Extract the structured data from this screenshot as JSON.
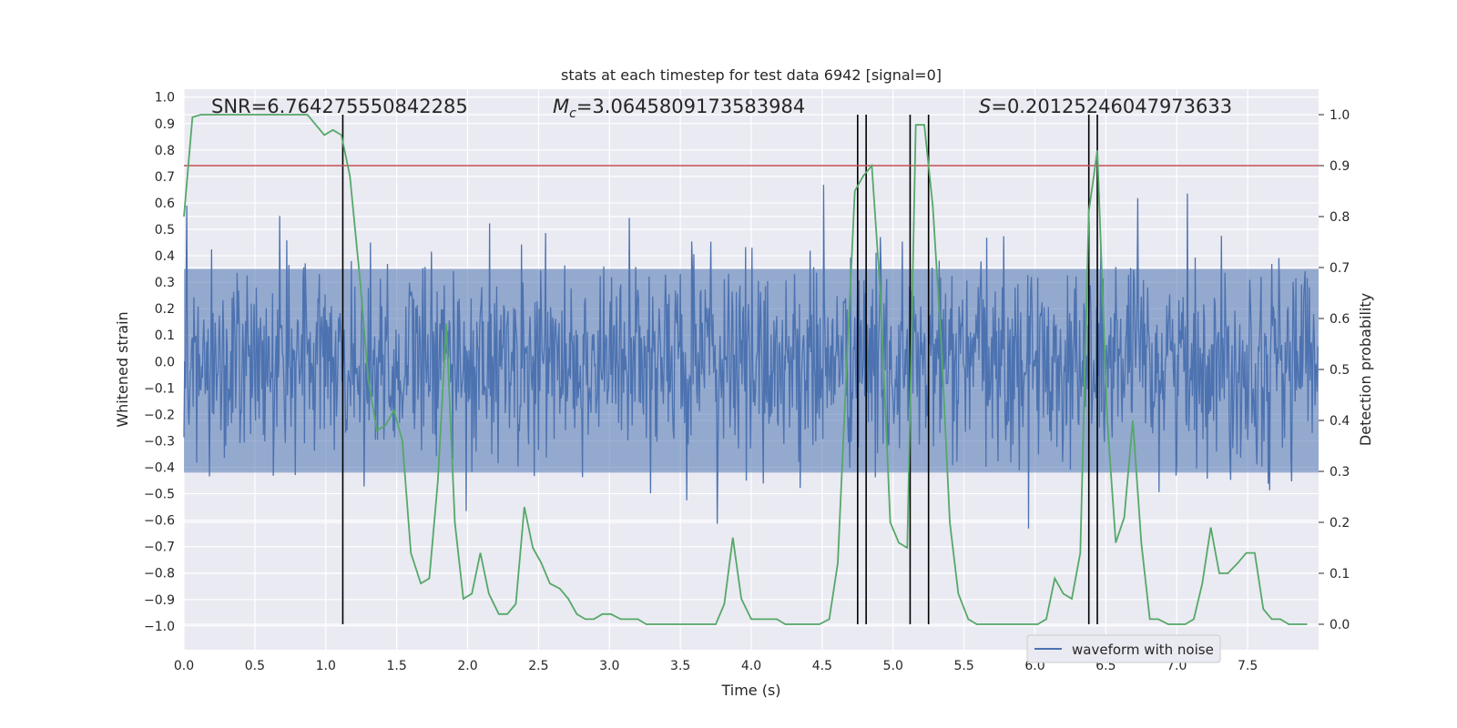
{
  "chart_data": {
    "type": "line",
    "title": "stats at each timestep for test data 6942 [signal=0]",
    "xlabel": "Time (s)",
    "ylabel": "Whitened strain",
    "y2label": "Detection probability",
    "xlim": [
      0.0,
      8.0
    ],
    "ylim": [
      -1.09,
      1.03
    ],
    "y2lim": [
      -0.05,
      1.05
    ],
    "xticks": [
      "0.0",
      "0.5",
      "1.0",
      "1.5",
      "2.0",
      "2.5",
      "3.0",
      "3.5",
      "4.0",
      "4.5",
      "5.0",
      "5.5",
      "6.0",
      "6.5",
      "7.0",
      "7.5"
    ],
    "xtick_values": [
      0.0,
      0.5,
      1.0,
      1.5,
      2.0,
      2.5,
      3.0,
      3.5,
      4.0,
      4.5,
      5.0,
      5.5,
      6.0,
      6.5,
      7.0,
      7.5
    ],
    "yticks": [
      "1.0",
      "0.9",
      "0.8",
      "0.7",
      "0.6",
      "0.5",
      "0.4",
      "0.3",
      "0.2",
      "0.1",
      "0.0",
      "−0.1",
      "−0.2",
      "−0.3",
      "−0.4",
      "−0.5",
      "−0.6",
      "−0.7",
      "−0.8",
      "−0.9",
      "−1.0"
    ],
    "ytick_values": [
      1.0,
      0.9,
      0.8,
      0.7,
      0.6,
      0.5,
      0.4,
      0.3,
      0.2,
      0.1,
      0.0,
      -0.1,
      -0.2,
      -0.3,
      -0.4,
      -0.5,
      -0.6,
      -0.7,
      -0.8,
      -0.9,
      -1.0
    ],
    "y2ticks": [
      "1.0",
      "0.9",
      "0.8",
      "0.7",
      "0.6",
      "0.5",
      "0.4",
      "0.3",
      "0.2",
      "0.1",
      "0.0"
    ],
    "y2tick_values": [
      1.0,
      0.9,
      0.8,
      0.7,
      0.6,
      0.5,
      0.4,
      0.3,
      0.2,
      0.1,
      0.0
    ],
    "annotations": {
      "snr": "SNR=6.764275550842285",
      "mc_symbol": "M",
      "mc_sub": "c",
      "mc_value": "=3.0645809173583984",
      "s_symbol": "S",
      "s_value": "=0.20125246047973633"
    },
    "threshold": {
      "value": 0.9,
      "axis": "y2",
      "color": "#c44e52"
    },
    "vertical_markers": [
      1.12,
      4.75,
      4.81,
      5.12,
      5.25,
      6.38,
      6.44
    ],
    "series": [
      {
        "name": "waveform with noise",
        "color": "#4c72b0",
        "axis": "y1",
        "style": "noise",
        "sample_rate": 200,
        "amplitude_std": 0.19,
        "clip": [
          -1.0,
          0.93
        ]
      },
      {
        "name": "detection probability",
        "color": "#55a868",
        "axis": "y2",
        "x": [
          0.0,
          0.06,
          0.12,
          0.18,
          0.25,
          0.31,
          0.37,
          0.43,
          0.5,
          0.56,
          0.62,
          0.68,
          0.74,
          0.81,
          0.87,
          0.93,
          0.99,
          1.05,
          1.11,
          1.17,
          1.24,
          1.3,
          1.36,
          1.42,
          1.48,
          1.54,
          1.6,
          1.67,
          1.73,
          1.79,
          1.85,
          1.91,
          1.97,
          2.03,
          2.09,
          2.15,
          2.22,
          2.28,
          2.34,
          2.4,
          2.46,
          2.52,
          2.58,
          2.65,
          2.71,
          2.77,
          2.83,
          2.89,
          2.95,
          3.01,
          3.08,
          3.14,
          3.2,
          3.26,
          3.32,
          3.38,
          3.44,
          3.5,
          3.57,
          3.63,
          3.69,
          3.75,
          3.81,
          3.87,
          3.93,
          4.0,
          4.06,
          4.12,
          4.18,
          4.24,
          4.3,
          4.36,
          4.42,
          4.48,
          4.55,
          4.61,
          4.67,
          4.73,
          4.79,
          4.85,
          4.91,
          4.98,
          5.04,
          5.1,
          5.16,
          5.22,
          5.28,
          5.34,
          5.4,
          5.46,
          5.53,
          5.59,
          5.65,
          5.71,
          5.77,
          5.83,
          5.89,
          5.96,
          6.02,
          6.08,
          6.14,
          6.2,
          6.26,
          6.32,
          6.38,
          6.44,
          6.51,
          6.57,
          6.63,
          6.69,
          6.75,
          6.81,
          6.87,
          6.94,
          7.0,
          7.06,
          7.12,
          7.18,
          7.24,
          7.3,
          7.36,
          7.43,
          7.49,
          7.55,
          7.61,
          7.67,
          7.73,
          7.79,
          7.85,
          7.92
        ],
        "values": [
          0.8,
          0.995,
          1.0,
          1.0,
          1.0,
          1.0,
          1.0,
          1.0,
          1.0,
          1.0,
          1.0,
          1.0,
          1.0,
          1.0,
          1.0,
          0.98,
          0.96,
          0.97,
          0.96,
          0.88,
          0.68,
          0.48,
          0.38,
          0.39,
          0.42,
          0.36,
          0.14,
          0.08,
          0.09,
          0.28,
          0.59,
          0.2,
          0.05,
          0.06,
          0.14,
          0.06,
          0.02,
          0.02,
          0.04,
          0.23,
          0.15,
          0.12,
          0.08,
          0.07,
          0.05,
          0.02,
          0.01,
          0.01,
          0.02,
          0.02,
          0.01,
          0.01,
          0.01,
          0.0,
          0.0,
          0.0,
          0.0,
          0.0,
          0.0,
          0.0,
          0.0,
          0.0,
          0.04,
          0.17,
          0.05,
          0.01,
          0.01,
          0.01,
          0.01,
          0.0,
          0.0,
          0.0,
          0.0,
          0.0,
          0.01,
          0.12,
          0.49,
          0.85,
          0.88,
          0.9,
          0.65,
          0.2,
          0.16,
          0.15,
          0.98,
          0.98,
          0.82,
          0.55,
          0.2,
          0.06,
          0.01,
          0.0,
          0.0,
          0.0,
          0.0,
          0.0,
          0.0,
          0.0,
          0.0,
          0.01,
          0.09,
          0.06,
          0.05,
          0.14,
          0.81,
          0.93,
          0.4,
          0.16,
          0.21,
          0.4,
          0.16,
          0.01,
          0.01,
          0.0,
          0.0,
          0.0,
          0.01,
          0.08,
          0.19,
          0.1,
          0.1,
          0.12,
          0.14,
          0.14,
          0.03,
          0.01,
          0.01,
          0.0,
          0.0,
          0.0
        ]
      }
    ],
    "legend": {
      "position": "lower-right",
      "label": "waveform with noise"
    }
  }
}
